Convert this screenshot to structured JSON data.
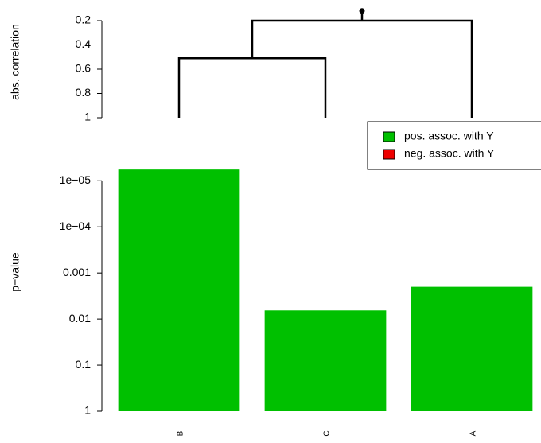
{
  "chart_data": [
    {
      "type": "dendrogram",
      "ylabel": "abs. correlation",
      "ylim": [
        0.1,
        1
      ],
      "reversed": true,
      "yticks": [
        0.2,
        0.4,
        0.6,
        0.8,
        1
      ],
      "merge": [
        [
          -1,
          -2
        ],
        [
          1,
          -3
        ]
      ],
      "heights": [
        0.51,
        0.2
      ],
      "root_height": 0.12,
      "leaf_height": 1,
      "color": "#000000"
    },
    {
      "type": "bar",
      "ylabel": "p−value",
      "log_scale": true,
      "reversed": true,
      "categories": [
        "B",
        "C",
        "A"
      ],
      "ylim": [
        1,
        3e-06
      ],
      "yticks": [
        1,
        0.1,
        0.01,
        0.001,
        {
          "value": 0.0001,
          "label": "1e−04"
        },
        {
          "value": 1e-05,
          "label": "1e−05"
        }
      ],
      "series": [
        {
          "name": "pos. assoc. with Y",
          "color": "#00c000",
          "values": [
            5.7e-06,
            0.0065,
            0.002
          ]
        },
        {
          "name": "neg. assoc. with Y",
          "color": "#ee0000",
          "values": [
            null,
            null,
            null
          ]
        }
      ],
      "legend": "top right"
    }
  ]
}
